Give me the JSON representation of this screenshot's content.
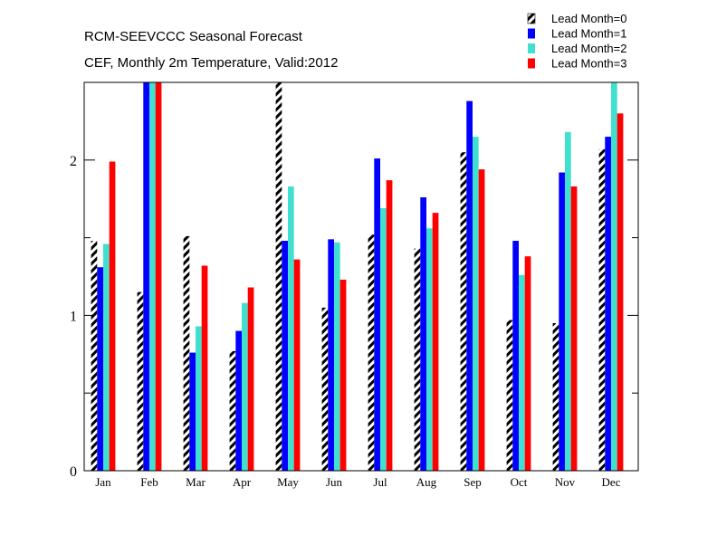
{
  "chart_data": {
    "type": "bar",
    "title": "RCM-SEEVCCC Seasonal Forecast",
    "subtitle": "CEF, Monthly 2m Temperature, Valid:2012",
    "xlabel": "",
    "ylabel": "",
    "ylim": [
      0,
      2.5
    ],
    "yticks": [
      0,
      1,
      2
    ],
    "categories": [
      "Jan",
      "Feb",
      "Mar",
      "Apr",
      "May",
      "Jun",
      "Jul",
      "Aug",
      "Sep",
      "Oct",
      "Nov",
      "Dec"
    ],
    "series": [
      {
        "name": "Lead Month=0",
        "color": "#000000",
        "pattern": "hatched",
        "values": [
          1.48,
          1.15,
          1.51,
          0.77,
          2.5,
          1.05,
          1.52,
          1.43,
          2.05,
          0.97,
          0.95,
          2.07
        ]
      },
      {
        "name": "Lead Month=1",
        "color": "#0000ff",
        "pattern": "solid",
        "values": [
          1.31,
          2.5,
          0.76,
          0.9,
          1.48,
          1.49,
          2.01,
          1.76,
          2.38,
          1.48,
          1.92,
          2.15
        ]
      },
      {
        "name": "Lead Month=2",
        "color": "#40e0d0",
        "pattern": "solid",
        "values": [
          1.46,
          2.5,
          0.93,
          1.08,
          1.83,
          1.47,
          1.69,
          1.56,
          2.15,
          1.26,
          2.18,
          2.5
        ]
      },
      {
        "name": "Lead Month=3",
        "color": "#ff0000",
        "pattern": "solid",
        "values": [
          1.99,
          2.5,
          1.32,
          1.18,
          1.36,
          1.23,
          1.87,
          1.66,
          1.94,
          1.38,
          1.83,
          2.3
        ]
      }
    ],
    "legend_position": "top-right",
    "grid": false
  }
}
